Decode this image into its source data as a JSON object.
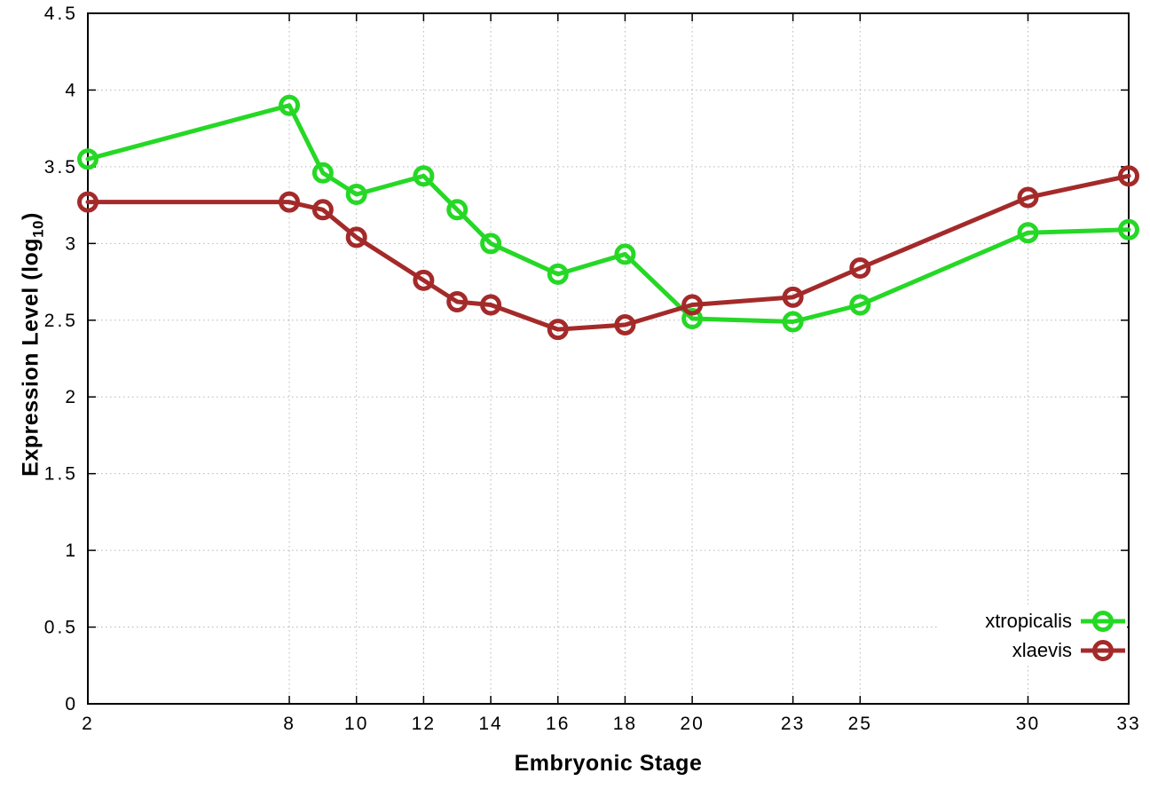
{
  "chart_data": {
    "type": "line",
    "title": "",
    "xlabel": "Embryonic Stage",
    "ylabel": "Expression Level (log10)",
    "ylabel_prefix": "Expression Level (log",
    "ylabel_subscript": "10",
    "ylabel_suffix": ")",
    "x": [
      2,
      8,
      9,
      10,
      12,
      13,
      14,
      16,
      18,
      20,
      23,
      25,
      30,
      33
    ],
    "series": [
      {
        "name": "xtropicalis",
        "color": "#25d825",
        "values": [
          3.55,
          3.9,
          3.46,
          3.32,
          3.44,
          3.22,
          3.0,
          2.8,
          2.93,
          2.51,
          2.49,
          2.6,
          3.07,
          3.09
        ]
      },
      {
        "name": "xlaevis",
        "color": "#a42a2a",
        "values": [
          3.27,
          3.27,
          3.22,
          3.04,
          2.76,
          2.62,
          2.6,
          2.44,
          2.47,
          2.6,
          2.65,
          2.84,
          3.3,
          3.44
        ]
      }
    ],
    "x_ticks": [
      2,
      8,
      10,
      12,
      14,
      16,
      18,
      20,
      23,
      25,
      30,
      33
    ],
    "y_ticks": [
      0,
      0.5,
      1,
      1.5,
      2,
      2.5,
      3,
      3.5,
      4,
      4.5
    ],
    "xlim": [
      2,
      33
    ],
    "ylim": [
      0,
      4.5
    ],
    "grid": true,
    "grid_color": "#b5b5b5",
    "axis_color": "#000000",
    "tick_label_color": "#000000",
    "legend": {
      "position": "bottom-right",
      "entries": [
        "xtropicalis",
        "xlaevis"
      ]
    }
  }
}
